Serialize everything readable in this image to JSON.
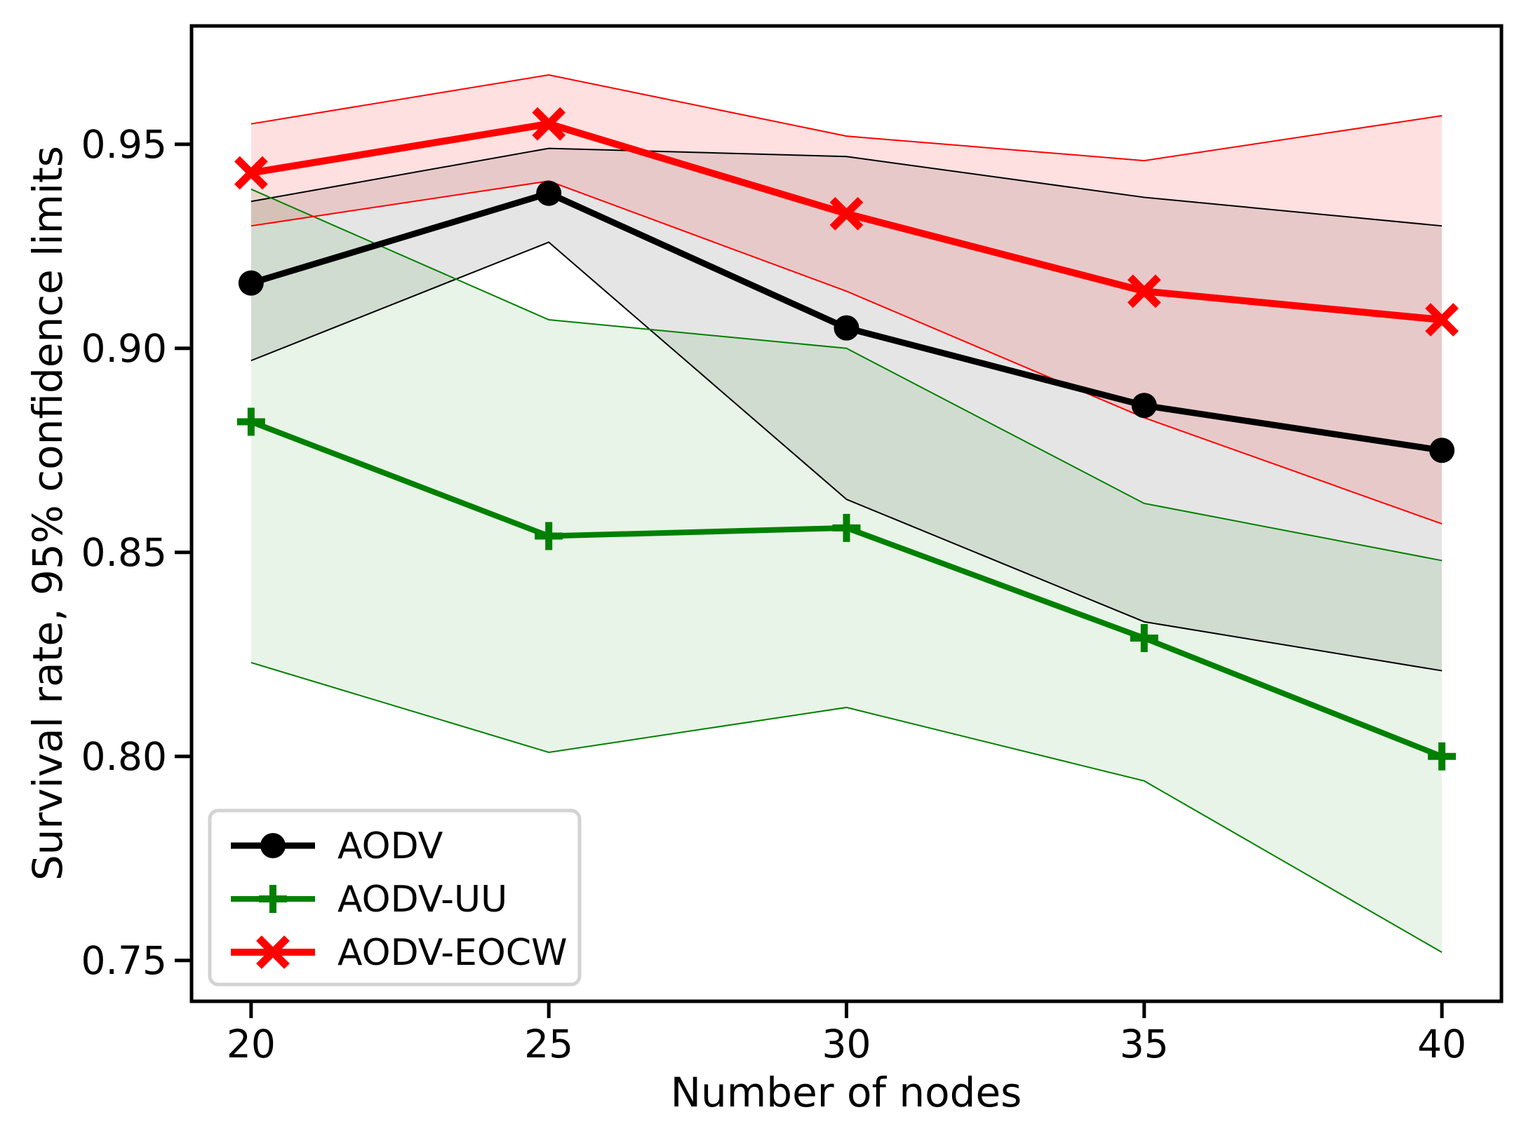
{
  "figure": {
    "background": "#ffffff",
    "frame_color": "#000000"
  },
  "chart_data": {
    "type": "line",
    "title": "",
    "xlabel": "Number of nodes",
    "ylabel": "Survival rate, 95% confidence limits",
    "x": [
      20,
      25,
      30,
      35,
      40
    ],
    "xlim": [
      19,
      41
    ],
    "ylim": [
      0.74,
      0.979
    ],
    "xticks": [
      20,
      25,
      30,
      35,
      40
    ],
    "xtick_labels": [
      "20",
      "25",
      "30",
      "35",
      "40"
    ],
    "yticks": [
      0.95,
      0.9,
      0.85,
      0.8,
      0.75
    ],
    "ytick_labels": [
      "0.95",
      "0.90",
      "0.85",
      "0.80",
      "0.75"
    ],
    "grid": false,
    "legend_position": "lower left",
    "series": [
      {
        "name": "AODV",
        "color": "#000000",
        "marker": "circle",
        "line_width": 9,
        "band_alpha": 0.1,
        "values": [
          0.916,
          0.938,
          0.905,
          0.886,
          0.875
        ],
        "ci_lower": [
          0.897,
          0.926,
          0.863,
          0.833,
          0.821
        ],
        "ci_upper": [
          0.936,
          0.949,
          0.947,
          0.937,
          0.93
        ]
      },
      {
        "name": "AODV-UU",
        "color": "#008000",
        "marker": "plus",
        "line_width": 8,
        "band_alpha": 0.09,
        "values": [
          0.882,
          0.854,
          0.856,
          0.829,
          0.8
        ],
        "ci_lower": [
          0.823,
          0.801,
          0.812,
          0.794,
          0.752
        ],
        "ci_upper": [
          0.939,
          0.907,
          0.9,
          0.862,
          0.848
        ]
      },
      {
        "name": "AODV-EOCW",
        "color": "#ff0000",
        "marker": "x",
        "line_width": 10,
        "band_alpha": 0.12,
        "values": [
          0.943,
          0.955,
          0.933,
          0.914,
          0.907
        ],
        "ci_lower": [
          0.93,
          0.941,
          0.914,
          0.883,
          0.857
        ],
        "ci_upper": [
          0.955,
          0.967,
          0.952,
          0.946,
          0.957
        ]
      }
    ],
    "legend": {
      "border_color": "#d3d3d3",
      "background": "#ffffff",
      "entries": [
        "AODV",
        "AODV-UU",
        "AODV-EOCW"
      ]
    }
  }
}
